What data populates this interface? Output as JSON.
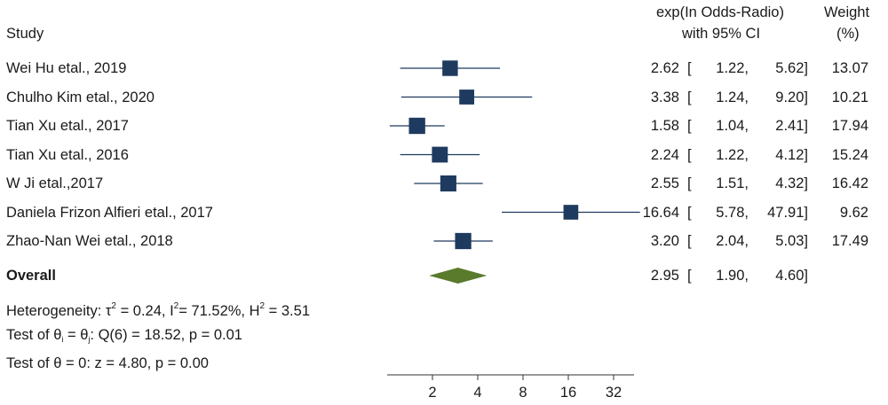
{
  "chart_data": {
    "type": "forest",
    "x_scale": "log2",
    "x_ticks": [
      2,
      4,
      8,
      16,
      32
    ],
    "header": {
      "study": "Study",
      "effect_line1": "exp(In Odds-Radio)",
      "effect_line2": "with 95% CI",
      "weight_line1": "Weight",
      "weight_line2": "(%)"
    },
    "studies": [
      {
        "name": "Wei Hu etal., 2019",
        "est": 2.62,
        "lo": 1.22,
        "hi": 5.62,
        "est_text": "2.62",
        "lo_text": "1.22,",
        "hi_text": "5.62]",
        "weight": "13.07"
      },
      {
        "name": "Chulho Kim etal., 2020",
        "est": 3.38,
        "lo": 1.24,
        "hi": 9.2,
        "est_text": "3.38",
        "lo_text": "1.24,",
        "hi_text": "9.20]",
        "weight": "10.21"
      },
      {
        "name": "Tian Xu etal., 2017",
        "est": 1.58,
        "lo": 1.04,
        "hi": 2.41,
        "est_text": "1.58",
        "lo_text": "1.04,",
        "hi_text": "2.41]",
        "weight": "17.94"
      },
      {
        "name": "Tian Xu  etal., 2016",
        "est": 2.24,
        "lo": 1.22,
        "hi": 4.12,
        "est_text": "2.24",
        "lo_text": "1.22,",
        "hi_text": "4.12]",
        "weight": "15.24"
      },
      {
        "name": "W Ji etal.,2017",
        "est": 2.55,
        "lo": 1.51,
        "hi": 4.32,
        "est_text": "2.55",
        "lo_text": "1.51,",
        "hi_text": "4.32]",
        "weight": "16.42"
      },
      {
        "name": "Daniela Frizon Alfieri etal., 2017",
        "est": 16.64,
        "lo": 5.78,
        "hi": 47.91,
        "est_text": "16.64",
        "lo_text": "5.78,",
        "hi_text": "47.91]",
        "weight": "9.62"
      },
      {
        "name": "Zhao-Nan Wei etal., 2018",
        "est": 3.2,
        "lo": 2.04,
        "hi": 5.03,
        "est_text": "3.20",
        "lo_text": "2.04,",
        "hi_text": "5.03]",
        "weight": "17.49"
      }
    ],
    "overall": {
      "name": "Overall",
      "est": 2.95,
      "lo": 1.9,
      "hi": 4.6,
      "est_text": "2.95",
      "lo_text": "1.90,",
      "hi_text": "4.60]"
    },
    "stats": {
      "het_prefix": "Heterogeneity: τ",
      "het_tau2": "= 0.24, I",
      "het_i2": "= 71.52%, H",
      "het_h2": "= 3.51",
      "sup2": "2",
      "theta": "θ",
      "sub_i": "i",
      "sub_j": "j",
      "test1_prefix": "Test of",
      "test1_eq": "=",
      "test1_suffix": ": Q(6) = 18.52, p = 0.01",
      "test2": "Test of θ = 0: z = 4.80, p = 0.00"
    },
    "bracket_open": "[",
    "colors": {
      "marker": "#1f3a5f",
      "line": "#1f3a5f",
      "diamond": "#5a7a2c",
      "axis": "#333333"
    }
  }
}
